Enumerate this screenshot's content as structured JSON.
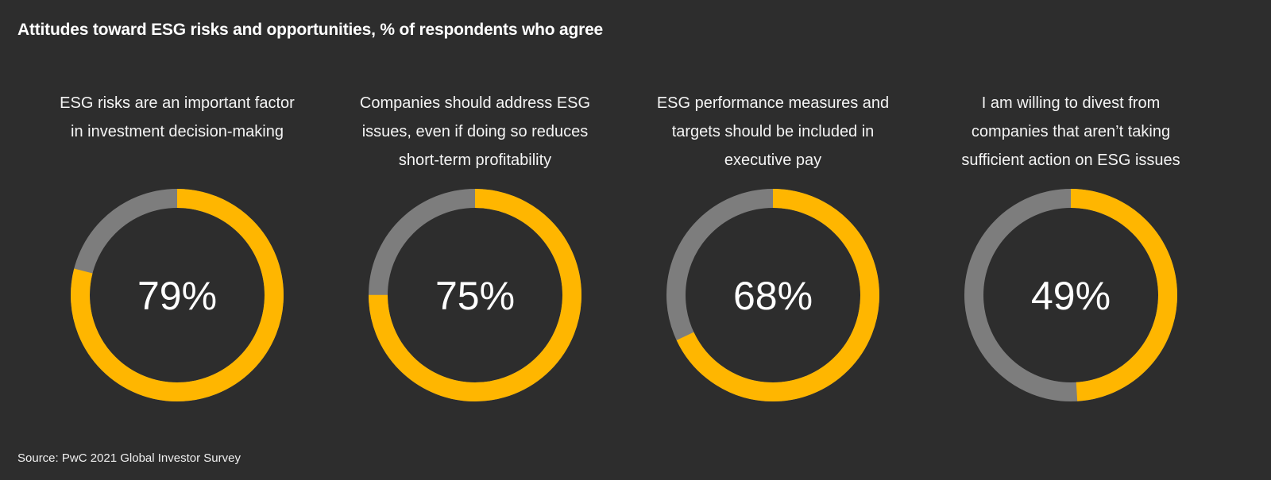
{
  "title": "Attitudes toward ESG risks and opportunities, % of respondents who agree",
  "source": "Source: PwC 2021 Global Investor Survey",
  "colors": {
    "background": "#2d2d2d",
    "agree": "#ffb600",
    "remainder": "#7d7d7d",
    "text": "#ffffff"
  },
  "chart_data": {
    "type": "pie",
    "title": "Attitudes toward ESG risks and opportunities, % of respondents who agree",
    "series": [
      {
        "label": [
          "ESG risks are an important factor",
          "in investment decision-making"
        ],
        "value": 79,
        "value_label": "79%"
      },
      {
        "label": [
          "Companies should address ESG",
          "issues, even if doing so reduces",
          "short-term profitability"
        ],
        "value": 75,
        "value_label": "75%"
      },
      {
        "label": [
          "ESG performance measures and",
          "targets should be included in",
          "executive pay"
        ],
        "value": 68,
        "value_label": "68%"
      },
      {
        "label": [
          "I am willing to divest from",
          "companies that aren’t taking",
          "sufficient action on ESG issues"
        ],
        "value": 49,
        "value_label": "49%"
      }
    ]
  }
}
